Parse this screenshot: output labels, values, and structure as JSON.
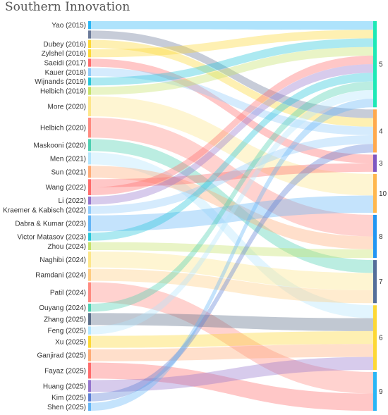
{
  "title": "Southern Innovation",
  "sources": [
    {
      "label": "Yao (2015)",
      "color": "#29b6f6",
      "links": [
        {
          "target": "5",
          "weight": 1
        }
      ]
    },
    {
      "label": "",
      "color": "#6b7a99",
      "links": [
        {
          "target": "4",
          "weight": 1
        }
      ]
    },
    {
      "label": "Dubey (2016)",
      "color": "#fdd835",
      "links": [
        {
          "target": "4",
          "weight": 1
        }
      ]
    },
    {
      "label": "Zylshel (2016)",
      "color": "#fdd835",
      "links": [
        {
          "target": "5",
          "weight": 1
        }
      ]
    },
    {
      "label": "Saeidi (2017)",
      "color": "#ff6b6b",
      "links": [
        {
          "target": "3",
          "weight": 1
        }
      ]
    },
    {
      "label": "Kauer (2018)",
      "color": "#90caf9",
      "links": [
        {
          "target": "4",
          "weight": 1
        }
      ]
    },
    {
      "label": "Wijnands (2019)",
      "color": "#26c6da",
      "links": [
        {
          "target": "5",
          "weight": 1
        }
      ]
    },
    {
      "label": "Helbich (2019)",
      "color": "#c5e16a",
      "links": [
        {
          "target": "5",
          "weight": 1
        }
      ]
    },
    {
      "label": "More (2020)",
      "color": "#fde68a",
      "links": [
        {
          "target": "10",
          "weight": 2.5
        }
      ]
    },
    {
      "label": "Helbich (2020)",
      "color": "#ff8a80",
      "links": [
        {
          "target": "8",
          "weight": 2.5
        }
      ]
    },
    {
      "label": "Maskooni (2020)",
      "color": "#4dd0b1",
      "links": [
        {
          "target": "7",
          "weight": 1.5
        }
      ]
    },
    {
      "label": "Men (2021)",
      "color": "#b3e5fc",
      "links": [
        {
          "target": "6",
          "weight": 1.5
        }
      ]
    },
    {
      "label": "Sun (2021)",
      "color": "#ffab76",
      "links": [
        {
          "target": "8",
          "weight": 1.5
        }
      ]
    },
    {
      "label": "Wang (2022)",
      "color": "#ff6b6b",
      "links": [
        {
          "target": "3",
          "weight": 1
        },
        {
          "target": "5",
          "weight": 1
        }
      ]
    },
    {
      "label": "Li (2022)",
      "color": "#9575cd",
      "links": [
        {
          "target": "5",
          "weight": 1
        }
      ]
    },
    {
      "label": "Kraemer & Kabisch (2022)",
      "color": "#90caf9",
      "links": [
        {
          "target": "4",
          "weight": 1
        }
      ]
    },
    {
      "label": "Dabra & Kumar (2023)",
      "color": "#64b5f6",
      "links": [
        {
          "target": "10",
          "weight": 2
        }
      ]
    },
    {
      "label": "Victor Matasov (2023)",
      "color": "#26c6da",
      "links": [
        {
          "target": "5",
          "weight": 1
        }
      ]
    },
    {
      "label": "Zhou (2024)",
      "color": "#c5e16a",
      "links": [
        {
          "target": "8",
          "weight": 1
        }
      ]
    },
    {
      "label": "Naghibi (2024)",
      "color": "#fde68a",
      "links": [
        {
          "target": "7",
          "weight": 2
        }
      ]
    },
    {
      "label": "Ramdani (2024)",
      "color": "#ffcc80",
      "links": [
        {
          "target": "7",
          "weight": 1.5
        }
      ]
    },
    {
      "label": "Patil (2024)",
      "color": "#ff8a80",
      "links": [
        {
          "target": "9",
          "weight": 2.5
        }
      ]
    },
    {
      "label": "Ouyang (2024)",
      "color": "#4dd0b1",
      "links": [
        {
          "target": "5",
          "weight": 1
        }
      ]
    },
    {
      "label": "Zhang (2025)",
      "color": "#5c6f8a",
      "links": [
        {
          "target": "6",
          "weight": 1.5
        }
      ]
    },
    {
      "label": "Feng (2025)",
      "color": "#b3e5fc",
      "links": [
        {
          "target": "5",
          "weight": 1
        }
      ]
    },
    {
      "label": "Xu (2025)",
      "color": "#fdd835",
      "links": [
        {
          "target": "6",
          "weight": 1.5
        }
      ]
    },
    {
      "label": "Ganjirad (2025)",
      "color": "#ffab76",
      "links": [
        {
          "target": "6",
          "weight": 1.5
        }
      ]
    },
    {
      "label": "Fayaz (2025)",
      "color": "#ff6b6b",
      "links": [
        {
          "target": "9",
          "weight": 2
        }
      ]
    },
    {
      "label": "Huang (2025)",
      "color": "#9575cd",
      "links": [
        {
          "target": "6",
          "weight": 1.5
        }
      ]
    },
    {
      "label": "Kim (2025)",
      "color": "#5c7fd6",
      "links": [
        {
          "target": "4",
          "weight": 1
        }
      ]
    },
    {
      "label": "Shen (2025)",
      "color": "#64b5f6",
      "links": [
        {
          "target": "5",
          "weight": 1
        }
      ]
    }
  ],
  "targets": [
    {
      "label": "5",
      "color": "#1de9b6"
    },
    {
      "label": "4",
      "color": "#ffa94d"
    },
    {
      "label": "3",
      "color": "#7e57c2"
    },
    {
      "label": "10",
      "color": "#ffb74d"
    },
    {
      "label": "8",
      "color": "#2196f3"
    },
    {
      "label": "7",
      "color": "#546e9a"
    },
    {
      "label": "6",
      "color": "#fdd835"
    },
    {
      "label": "9",
      "color": "#29b6f6"
    }
  ]
}
